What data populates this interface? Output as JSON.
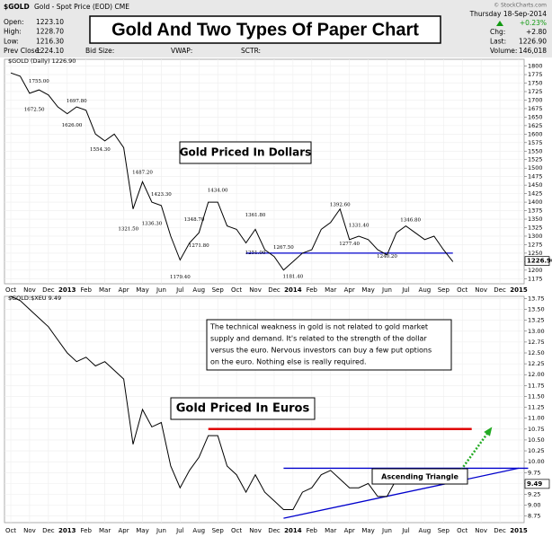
{
  "header": {
    "symbol": "$GOLD",
    "description": "Gold - Spot Price (EOD) CME",
    "fields": [
      [
        "Open:",
        "1223.10"
      ],
      [
        "High:",
        "1228.70"
      ],
      [
        "Low:",
        "1216.30"
      ],
      [
        "Prev Close:",
        "1224.10"
      ]
    ],
    "bid_size": "Bid Size:",
    "vwap": "VWAP:",
    "sctr": "SCTR:",
    "date": "Thursday 18-Sep-2014",
    "change_pct": "+0.23%",
    "right_fields": [
      [
        "Chg:",
        "+2.80"
      ],
      [
        "Last:",
        "1226.90"
      ],
      [
        "Volume:",
        "146,018"
      ]
    ],
    "credit": "© StockCharts.com",
    "title": "Gold And Two Types Of Paper Chart"
  },
  "chart_data": [
    {
      "type": "line",
      "legend": "$GOLD (Daily) 1226.90",
      "title": "Gold Priced In Dollars",
      "grid": true,
      "categories": [
        "Oct",
        null,
        "Nov",
        null,
        "Dec",
        null,
        "2013",
        null,
        "Feb",
        null,
        "Mar",
        null,
        "Apr",
        null,
        "May",
        null,
        "Jun",
        null,
        "Jul",
        null,
        "Aug",
        null,
        "Sep",
        null,
        "Oct",
        null,
        "Nov",
        null,
        "Dec",
        null,
        "2014",
        null,
        "Feb",
        null,
        "Mar",
        null,
        "Apr",
        null,
        "May",
        null,
        "Jun",
        null,
        "Jul",
        null,
        "Aug",
        null,
        "Sep",
        null,
        "Oct",
        null,
        "Nov",
        null,
        "Dec",
        null,
        "2015"
      ],
      "series": [
        {
          "name": "$GOLD",
          "color": "#000000",
          "values": [
            1780,
            1770,
            1720,
            1730,
            1715,
            1680,
            1660,
            1680,
            1670,
            1600,
            1580,
            1600,
            1560,
            1380,
            1460,
            1400,
            1390,
            1300,
            1230,
            1280,
            1310,
            1400,
            1400,
            1330,
            1320,
            1280,
            1320,
            1260,
            1240,
            1200,
            1225,
            1250,
            1260,
            1320,
            1340,
            1380,
            1290,
            1300,
            1290,
            1260,
            1245,
            1310,
            1330,
            1310,
            1290,
            1300,
            1260,
            1225,
            null,
            null,
            null,
            null,
            null,
            null,
            null
          ]
        }
      ],
      "last_label": {
        "value": 1226.9,
        "label": "1226.90"
      },
      "ylim": [
        1160,
        1820
      ],
      "yticks": [
        1175,
        1200,
        1225,
        1250,
        1275,
        1300,
        1325,
        1350,
        1375,
        1400,
        1425,
        1450,
        1475,
        1500,
        1525,
        1550,
        1575,
        1600,
        1625,
        1650,
        1675,
        1700,
        1725,
        1750,
        1775,
        1800
      ],
      "price_labels": [
        {
          "value": 1755,
          "label": "1755.00",
          "x": 3
        },
        {
          "value": 1672.5,
          "label": "1672.50",
          "x": 2.5
        },
        {
          "value": 1697.8,
          "label": "1697.80",
          "x": 7
        },
        {
          "value": 1626,
          "label": "1626.00",
          "x": 6.5
        },
        {
          "value": 1554.3,
          "label": "1554.30",
          "x": 9.5
        },
        {
          "value": 1487.2,
          "label": "1487.20",
          "x": 14
        },
        {
          "value": 1321.5,
          "label": "1321.50",
          "x": 12.5
        },
        {
          "value": 1423.3,
          "label": "1423.30",
          "x": 16
        },
        {
          "value": 1336.3,
          "label": "1336.30",
          "x": 15
        },
        {
          "value": 1348.7,
          "label": "1348.70",
          "x": 19.5
        },
        {
          "value": 1271.8,
          "label": "1271.80",
          "x": 20
        },
        {
          "value": 1179.4,
          "label": "1179.40",
          "x": 18
        },
        {
          "value": 1434,
          "label": "1434.00",
          "x": 22
        },
        {
          "value": 1361.8,
          "label": "1361.80",
          "x": 26
        },
        {
          "value": 1267.5,
          "label": "1267.50",
          "x": 29
        },
        {
          "value": 1251,
          "label": "1251.00",
          "x": 26
        },
        {
          "value": 1181.4,
          "label": "1181.40",
          "x": 30
        },
        {
          "value": 1392.6,
          "label": "1392.60",
          "x": 35
        },
        {
          "value": 1331.4,
          "label": "1331.40",
          "x": 37
        },
        {
          "value": 1277.4,
          "label": "1277.40",
          "x": 36
        },
        {
          "value": 1346.8,
          "label": "1346.80",
          "x": 42.5
        },
        {
          "value": 1240.2,
          "label": "1240.20",
          "x": 40
        }
      ],
      "lines": [
        {
          "color": "#0000cc",
          "x": [
            25,
            47
          ],
          "values": [
            1250,
            1250
          ]
        }
      ]
    },
    {
      "type": "line",
      "legend": "$GOLD:$XEU 9.49",
      "title": "Gold Priced In Euros",
      "grid": true,
      "note": [
        "The technical weakness in gold is not related to gold market",
        "supply and demand.  It's related to the strength of the dollar",
        "versus the euro.  Nervous investors can buy a few put options",
        "on the euro.  Nothing else is really required."
      ],
      "pattern_label": "Ascending Triangle",
      "categories": [
        "Oct",
        null,
        "Nov",
        null,
        "Dec",
        null,
        "2013",
        null,
        "Feb",
        null,
        "Mar",
        null,
        "Apr",
        null,
        "May",
        null,
        "Jun",
        null,
        "Jul",
        null,
        "Aug",
        null,
        "Sep",
        null,
        "Oct",
        null,
        "Nov",
        null,
        "Dec",
        null,
        "2014",
        null,
        "Feb",
        null,
        "Mar",
        null,
        "Apr",
        null,
        "May",
        null,
        "Jun",
        null,
        "Jul",
        null,
        "Aug",
        null,
        "Sep",
        null,
        "Oct",
        null,
        "Nov",
        null,
        "Dec",
        null,
        "2015"
      ],
      "series": [
        {
          "name": "$GOLD:$XEU",
          "color": "#000000",
          "values": [
            13.8,
            13.7,
            13.5,
            13.3,
            13.1,
            12.8,
            12.5,
            12.3,
            12.4,
            12.2,
            12.3,
            12.1,
            11.9,
            10.4,
            11.2,
            10.8,
            10.9,
            9.9,
            9.4,
            9.8,
            10.1,
            10.6,
            10.6,
            9.9,
            9.7,
            9.3,
            9.7,
            9.3,
            9.1,
            8.9,
            8.9,
            9.3,
            9.4,
            9.7,
            9.8,
            9.6,
            9.4,
            9.4,
            9.5,
            9.2,
            9.2,
            9.6,
            9.8,
            9.7,
            9.7,
            9.7,
            9.6,
            9.49,
            null,
            null,
            null,
            null,
            null,
            null,
            null
          ]
        }
      ],
      "last_label": {
        "value": 9.49,
        "label": "9.49"
      },
      "ylim": [
        8.6,
        13.8
      ],
      "yticks": [
        8.75,
        {
          "value": 9,
          "label": "9.00"
        },
        9.25,
        {
          "value": 9.5,
          "label": "9.50"
        },
        9.75,
        {
          "value": 10,
          "label": "10.00"
        },
        10.25,
        {
          "value": 10.5,
          "label": "10.50"
        },
        10.75,
        {
          "value": 11,
          "label": "11.00"
        },
        11.25,
        {
          "value": 11.5,
          "label": "11.50"
        },
        11.75,
        {
          "value": 12,
          "label": "12.00"
        },
        12.25,
        {
          "value": 12.5,
          "label": "12.50"
        },
        12.75,
        {
          "value": 13,
          "label": "13.00"
        },
        13.25,
        {
          "value": 13.5,
          "label": "13.50"
        },
        13.75
      ],
      "lines": [
        {
          "color": "#e00000",
          "x": [
            21,
            49
          ],
          "values": [
            10.75,
            10.75
          ]
        },
        {
          "color": "#0000cc",
          "x": [
            29,
            55
          ],
          "values": [
            9.85,
            9.85
          ]
        },
        {
          "color": "#0000cc",
          "x": [
            29,
            54
          ],
          "values": [
            8.7,
            9.85
          ]
        },
        {
          "color": "#22aa22",
          "x": [
            47,
            51
          ],
          "values": [
            9.55,
            10.75
          ],
          "dash": true
        }
      ]
    }
  ]
}
